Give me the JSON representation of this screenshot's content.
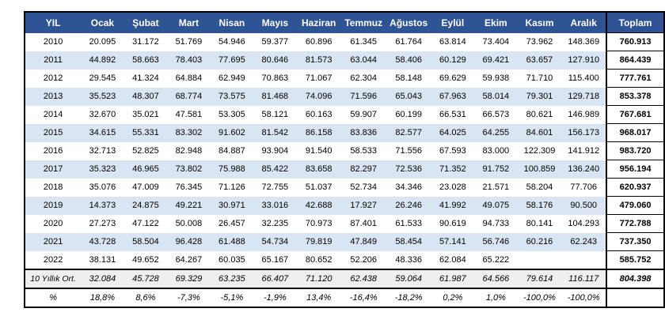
{
  "colors": {
    "header_bg": "#2F5496",
    "header_text": "#FFFFFF",
    "stripe_bg": "#D9E5F2",
    "avg_row_bg": "#EFEFEF",
    "border": "#000000"
  },
  "chart_data": {
    "type": "table",
    "title": "",
    "columns": [
      "YIL",
      "Ocak",
      "Şubat",
      "Mart",
      "Nisan",
      "Mayıs",
      "Haziran",
      "Temmuz",
      "Ağustos",
      "Eylül",
      "Ekim",
      "Kasım",
      "Aralık",
      "Toplam"
    ],
    "rows": [
      {
        "label": "2010",
        "values": [
          "20.095",
          "31.172",
          "51.769",
          "54.946",
          "59.377",
          "60.896",
          "61.345",
          "61.764",
          "63.814",
          "73.404",
          "73.962",
          "148.369"
        ],
        "total": "760.913"
      },
      {
        "label": "2011",
        "values": [
          "44.892",
          "58.663",
          "78.403",
          "77.695",
          "80.646",
          "81.573",
          "63.044",
          "58.406",
          "60.129",
          "69.421",
          "63.657",
          "127.910"
        ],
        "total": "864.439"
      },
      {
        "label": "2012",
        "values": [
          "29.545",
          "41.324",
          "64.884",
          "62.949",
          "70.863",
          "71.067",
          "62.304",
          "58.148",
          "69.629",
          "59.938",
          "71.710",
          "115.400"
        ],
        "total": "777.761"
      },
      {
        "label": "2013",
        "values": [
          "35.523",
          "48.307",
          "68.774",
          "73.575",
          "81.468",
          "74.096",
          "71.596",
          "65.043",
          "67.963",
          "58.014",
          "79.301",
          "129.718"
        ],
        "total": "853.378"
      },
      {
        "label": "2014",
        "values": [
          "32.670",
          "35.021",
          "47.581",
          "53.305",
          "58.121",
          "60.163",
          "59.907",
          "60.199",
          "66.531",
          "66.573",
          "80.621",
          "146.989"
        ],
        "total": "767.681"
      },
      {
        "label": "2015",
        "values": [
          "34.615",
          "55.331",
          "83.302",
          "91.602",
          "81.542",
          "86.158",
          "83.836",
          "82.577",
          "64.025",
          "64.255",
          "84.601",
          "156.173"
        ],
        "total": "968.017"
      },
      {
        "label": "2016",
        "values": [
          "32.713",
          "52.825",
          "82.948",
          "84.887",
          "93.904",
          "91.540",
          "58.533",
          "71.556",
          "67.593",
          "83.000",
          "122.309",
          "141.912"
        ],
        "total": "983.720"
      },
      {
        "label": "2017",
        "values": [
          "35.323",
          "46.965",
          "73.802",
          "75.988",
          "85.422",
          "83.658",
          "82.297",
          "72.536",
          "71.352",
          "91.752",
          "100.859",
          "136.240"
        ],
        "total": "956.194"
      },
      {
        "label": "2018",
        "values": [
          "35.076",
          "47.009",
          "76.345",
          "71.126",
          "72.755",
          "51.037",
          "52.734",
          "34.346",
          "23.028",
          "21.571",
          "58.204",
          "77.706"
        ],
        "total": "620.937"
      },
      {
        "label": "2019",
        "values": [
          "14.373",
          "24.875",
          "49.221",
          "30.971",
          "33.016",
          "42.688",
          "17.927",
          "26.246",
          "41.992",
          "49.075",
          "58.176",
          "90.500"
        ],
        "total": "479.060"
      },
      {
        "label": "2020",
        "values": [
          "27.273",
          "47.122",
          "50.008",
          "26.457",
          "32.235",
          "70.973",
          "87.401",
          "61.533",
          "90.619",
          "94.733",
          "80.141",
          "104.293"
        ],
        "total": "772.788"
      },
      {
        "label": "2021",
        "values": [
          "43.728",
          "58.504",
          "96.428",
          "61.488",
          "54.734",
          "79.819",
          "47.849",
          "58.454",
          "57.141",
          "56.746",
          "60.216",
          "62.243"
        ],
        "total": "737.350"
      },
      {
        "label": "2022",
        "values": [
          "38.131",
          "49.652",
          "64.267",
          "60.035",
          "65.167",
          "80.652",
          "52.206",
          "48.336",
          "62.084",
          "65.222",
          "",
          ""
        ],
        "total": "585.752"
      }
    ],
    "summary_rows": [
      {
        "label": "10 Yıllık Ort.",
        "values": [
          "32.084",
          "45.728",
          "69.329",
          "63.235",
          "66.407",
          "71.120",
          "62.438",
          "59.064",
          "61.987",
          "64.566",
          "79.614",
          "116.117"
        ],
        "total": "804.398"
      },
      {
        "label": "%",
        "values": [
          "18,8%",
          "8,6%",
          "-7,3%",
          "-5,1%",
          "-1,9%",
          "13,4%",
          "-16,4%",
          "-18,2%",
          "0,2%",
          "1,0%",
          "-100,0%",
          "-100,0%"
        ],
        "total": ""
      }
    ]
  }
}
